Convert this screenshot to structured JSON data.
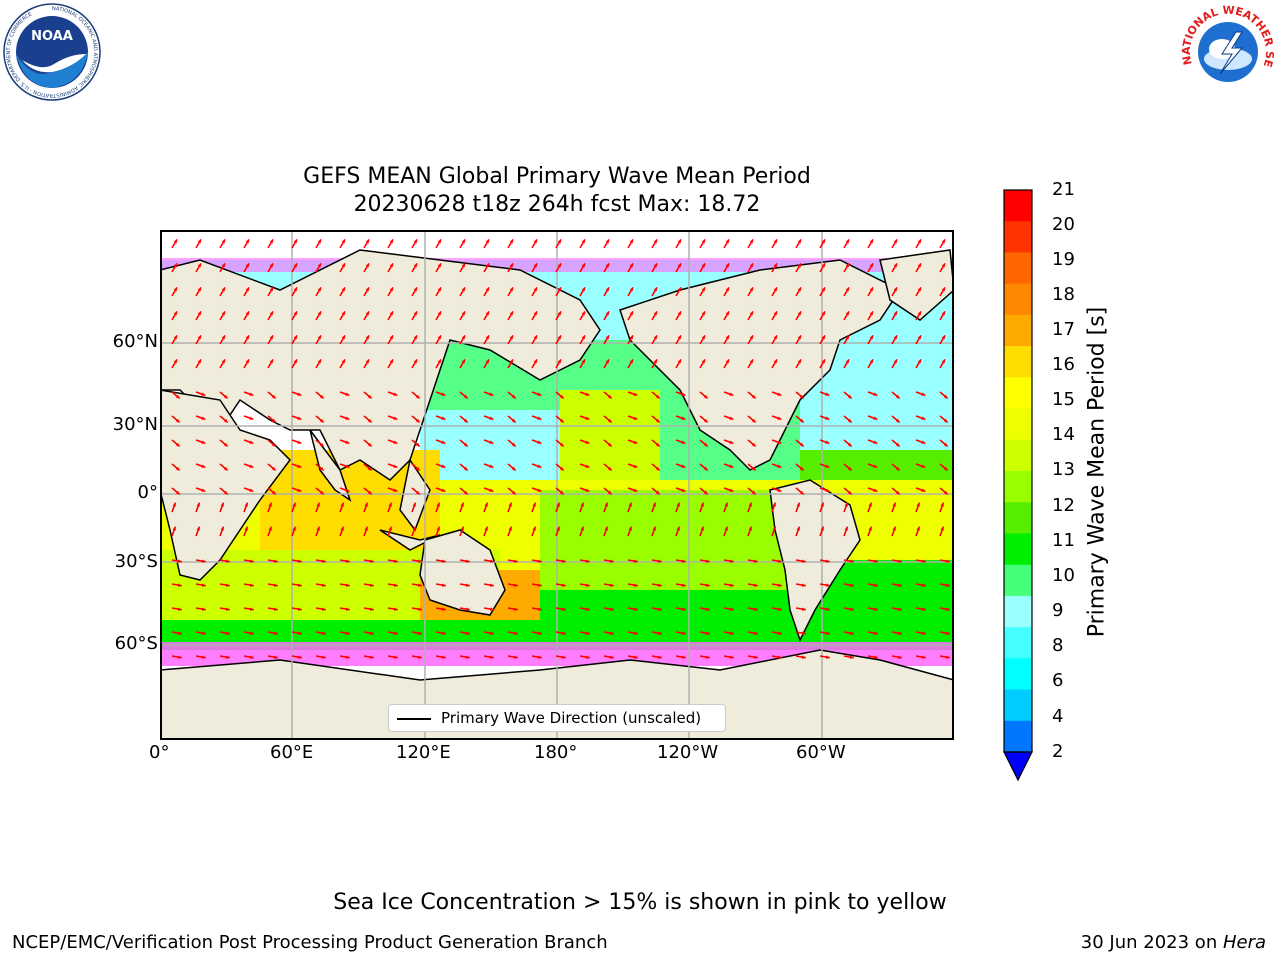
{
  "header": {
    "title_line1": "GEFS MEAN Global Primary Wave Mean Period",
    "title_line2": "20230628 t18z 264h fcst   Max: 18.72",
    "noaa_logo_text": "NOAA",
    "noaa_ring_text": "NATIONAL OCEANIC AND ATMOSPHERIC ADMINISTRATION · U.S. DEPARTMENT OF COMMERCE",
    "nws_ring_text": "NATIONAL WEATHER SERVICE"
  },
  "map": {
    "lat_labels": [
      "60°N",
      "30°N",
      "0°",
      "30°S",
      "60°S"
    ],
    "lon_labels": [
      "0°",
      "60°E",
      "120°E",
      "180°",
      "120°W",
      "60°W"
    ],
    "legend_label": "Primary Wave Direction (unscaled)",
    "arrow_color": "#ff0000",
    "land_color": "#efecdc",
    "sea_ice_color": "#ff66ff"
  },
  "colorbar": {
    "label": "Primary Wave Mean Period [s]",
    "ticks": [
      "21",
      "20",
      "19",
      "18",
      "17",
      "16",
      "15",
      "14",
      "13",
      "12",
      "11",
      "10",
      "9",
      "8",
      "6",
      "4",
      "2"
    ],
    "colors": [
      "#ff0000",
      "#ff3300",
      "#ff6600",
      "#ff8800",
      "#ffaa00",
      "#ffdd00",
      "#ffff00",
      "#eeff00",
      "#ccff00",
      "#99ff00",
      "#55ee00",
      "#00ee00",
      "#44ff77",
      "#99ffff",
      "#44ffff",
      "#00ffff",
      "#00ccff",
      "#0077ff"
    ],
    "under_color": "#0000ff"
  },
  "footer": {
    "note": "Sea Ice Concentration > 15% is shown in pink to yellow",
    "left": "NCEP/EMC/Verification Post Processing Product Generation Branch",
    "right_date": "30 Jun 2023 on ",
    "right_machine": "Hera"
  }
}
